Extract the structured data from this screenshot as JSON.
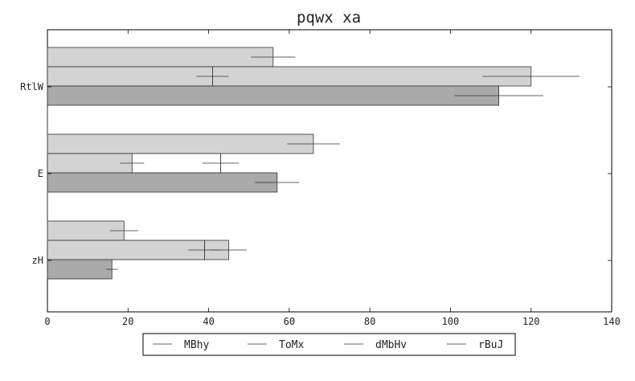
{
  "chart_data": {
    "type": "bar",
    "orientation": "horizontal",
    "title": "pqwx xa",
    "xlabel": "",
    "ylabel": "",
    "xlim": [
      0,
      140
    ],
    "x_ticks": [
      0,
      20,
      40,
      60,
      80,
      100,
      120,
      140
    ],
    "categories": [
      "RtlW",
      "E",
      "zH"
    ],
    "grid": false,
    "legend_position": "bottom-center",
    "legend": [
      "MBhy",
      "ToMx",
      "dMbHv",
      "rBuJ"
    ],
    "bar_series": [
      {
        "values": [
          56,
          66,
          19
        ],
        "errors": [
          5.5,
          6.5,
          3.5
        ],
        "color": "#d3d3d3"
      },
      {
        "values": [
          120,
          21,
          45
        ],
        "errors": [
          12,
          3,
          4.5
        ],
        "color": "#d3d3d3"
      },
      {
        "values": [
          112,
          57,
          16
        ],
        "errors": [
          11,
          5.5,
          1.5
        ],
        "color": "#a9a9a9"
      }
    ],
    "step_line": {
      "values": [
        41,
        43,
        39
      ],
      "errors": [
        4,
        4.5,
        4
      ]
    }
  }
}
